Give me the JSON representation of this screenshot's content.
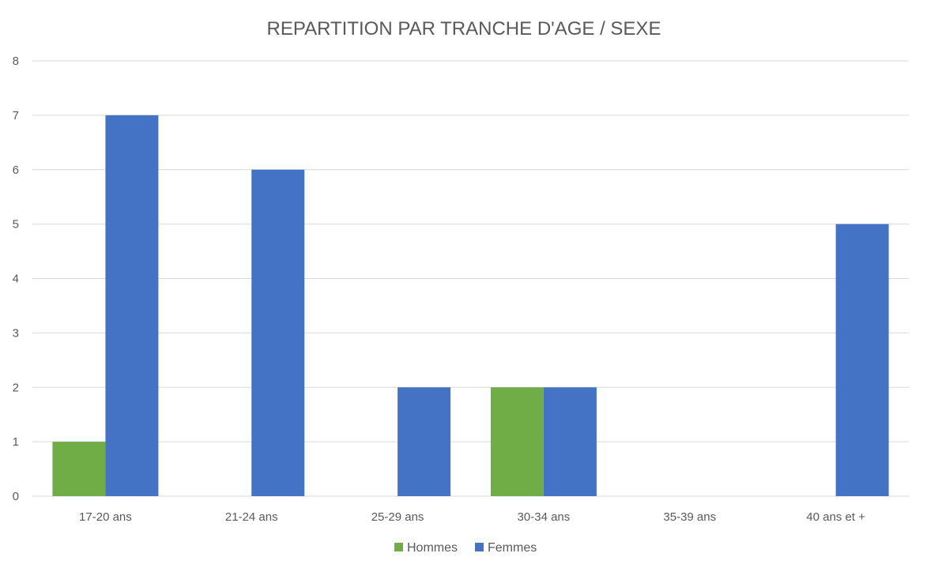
{
  "chart_data": {
    "type": "bar",
    "title": "REPARTITION PAR TRANCHE D'AGE / SEXE",
    "xlabel": "",
    "ylabel": "",
    "categories": [
      "17-20 ans",
      "21-24 ans",
      "25-29 ans",
      "30-34 ans",
      "35-39 ans",
      "40 ans et +"
    ],
    "series": [
      {
        "name": "Hommes",
        "values": [
          1,
          0,
          0,
          2,
          0,
          0
        ],
        "color": "#70AD47"
      },
      {
        "name": "Femmes",
        "values": [
          7,
          6,
          2,
          2,
          0,
          5
        ],
        "color": "#4472C4"
      }
    ],
    "ylim": [
      0,
      8
    ],
    "yticks": [
      "0",
      "1",
      "2",
      "3",
      "4",
      "5",
      "6",
      "7",
      "8"
    ],
    "grid": true,
    "legend": "bottom"
  }
}
